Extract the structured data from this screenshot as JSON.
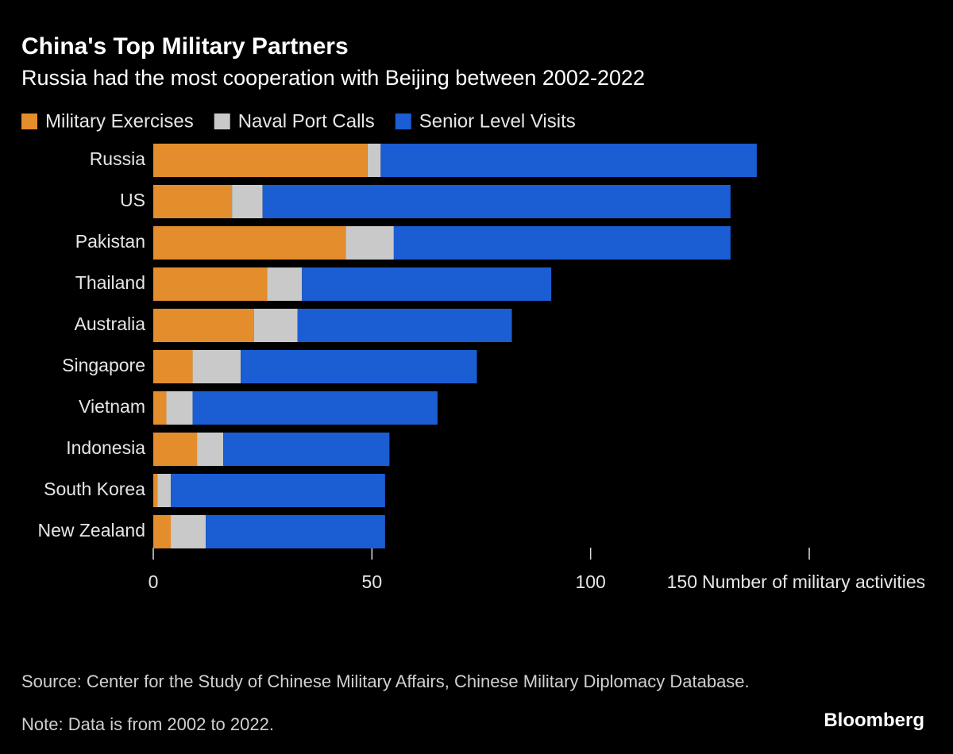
{
  "chart_data": {
    "type": "stacked_barh",
    "title": "China's Top Military Partners",
    "subtitle": "Russia had the most cooperation with Beijing between 2002-2022",
    "categories": [
      "Russia",
      "US",
      "Pakistan",
      "Thailand",
      "Australia",
      "Singapore",
      "Vietnam",
      "Indonesia",
      "South Korea",
      "New Zealand"
    ],
    "series": [
      {
        "name": "Military Exercises",
        "color": "#e38d2c",
        "values": [
          49,
          18,
          44,
          26,
          23,
          9,
          3,
          10,
          1,
          4
        ]
      },
      {
        "name": "Naval Port Calls",
        "color": "#c9c9c9",
        "values": [
          3,
          7,
          11,
          8,
          10,
          11,
          6,
          6,
          3,
          8
        ]
      },
      {
        "name": "Senior Level Visits",
        "color": "#1b5dd3",
        "values": [
          86,
          107,
          77,
          57,
          49,
          54,
          56,
          38,
          49,
          41
        ]
      }
    ],
    "x_label": "Number of military activities",
    "xlim": [
      0,
      150
    ],
    "xticks": [
      0,
      50,
      100,
      150
    ],
    "source": "Source: Center for the Study of Chinese Military Affairs, Chinese Military Diplomacy Database.",
    "note": "Note: Data is from 2002 to 2022.",
    "brand": "Bloomberg"
  }
}
